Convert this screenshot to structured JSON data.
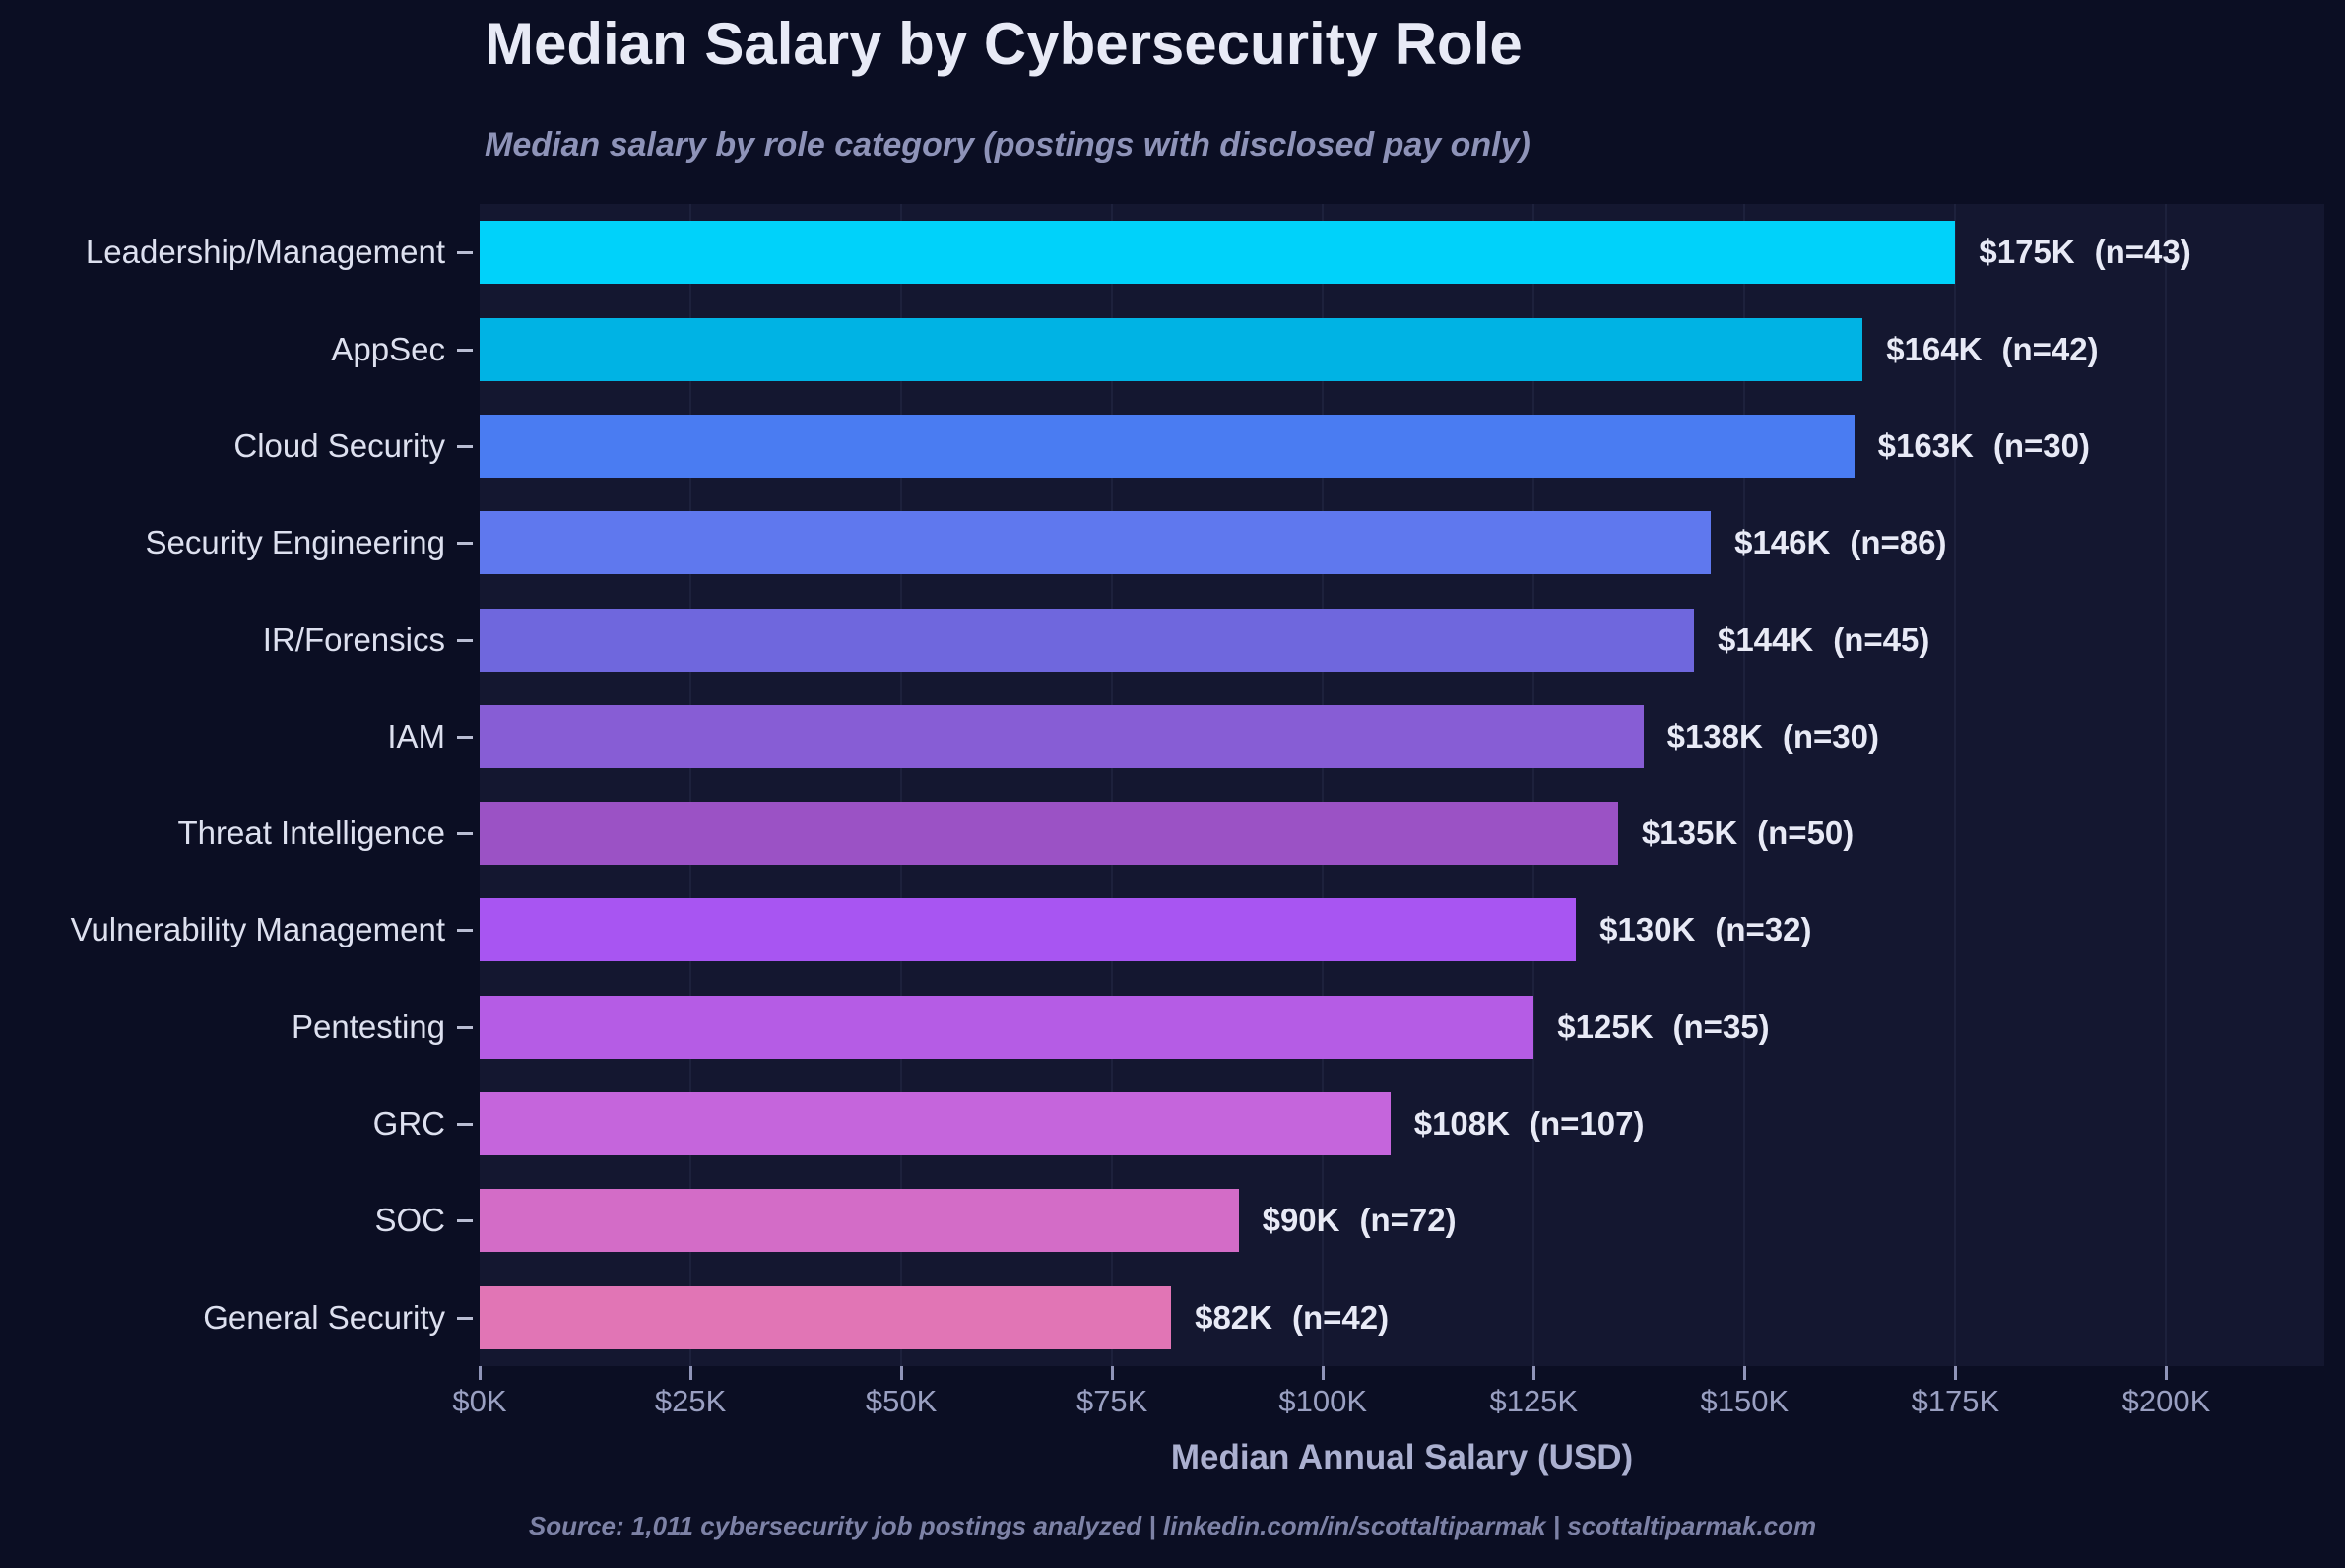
{
  "chart_data": {
    "type": "bar",
    "orientation": "horizontal",
    "title": "Median Salary by Cybersecurity Role",
    "subtitle": "Median salary by role category (postings with disclosed pay only)",
    "xlabel": "Median Annual Salary (USD)",
    "footer": "Source: 1,011 cybersecurity job postings analyzed  |  linkedin.com/in/scottaltiparmak  |  scottaltiparmak.com",
    "categories": [
      "Leadership/Management",
      "AppSec",
      "Cloud Security",
      "Security Engineering",
      "IR/Forensics",
      "IAM",
      "Threat Intelligence",
      "Vulnerability Management",
      "Pentesting",
      "GRC",
      "SOC",
      "General Security"
    ],
    "values": [
      175,
      164,
      163,
      146,
      144,
      138,
      135,
      130,
      125,
      108,
      90,
      82
    ],
    "sample_sizes": [
      43,
      42,
      30,
      86,
      45,
      30,
      50,
      32,
      35,
      107,
      72,
      42
    ],
    "value_labels": [
      "$175K",
      "$164K",
      "$163K",
      "$146K",
      "$144K",
      "$138K",
      "$135K",
      "$130K",
      "$125K",
      "$108K",
      "$90K",
      "$82K"
    ],
    "n_labels": [
      "(n=43)",
      "(n=42)",
      "(n=30)",
      "(n=86)",
      "(n=45)",
      "(n=30)",
      "(n=50)",
      "(n=32)",
      "(n=35)",
      "(n=107)",
      "(n=72)",
      "(n=42)"
    ],
    "bar_colors": [
      "#00d2fa",
      "#00b3e4",
      "#4a7cf2",
      "#5f78ee",
      "#6f67dd",
      "#875dd5",
      "#9b52c5",
      "#a855f2",
      "#b55ce5",
      "#c565dc",
      "#d36cc7",
      "#e175b5"
    ],
    "xlim": [
      0,
      218.75
    ],
    "x_tick_values": [
      0,
      25,
      50,
      75,
      100,
      125,
      150,
      175,
      200
    ],
    "x_tick_labels": [
      "$0K",
      "$25K",
      "$50K",
      "$75K",
      "$100K",
      "$125K",
      "$150K",
      "$175K",
      "$200K"
    ],
    "grid": "faint vertical gridlines at each x tick",
    "legend": "none"
  },
  "colors": {
    "page_bg": "#0b0e23",
    "plot_bg": "#141730",
    "title_text": "#e8eaf6",
    "subtitle_text": "#8e93b8",
    "category_text": "#dde0ef",
    "value_text": "#e8eaf6",
    "xtick_text": "#9aa0c2",
    "xlabel_text": "#abb0d0",
    "footer_text": "#7d82a6"
  }
}
